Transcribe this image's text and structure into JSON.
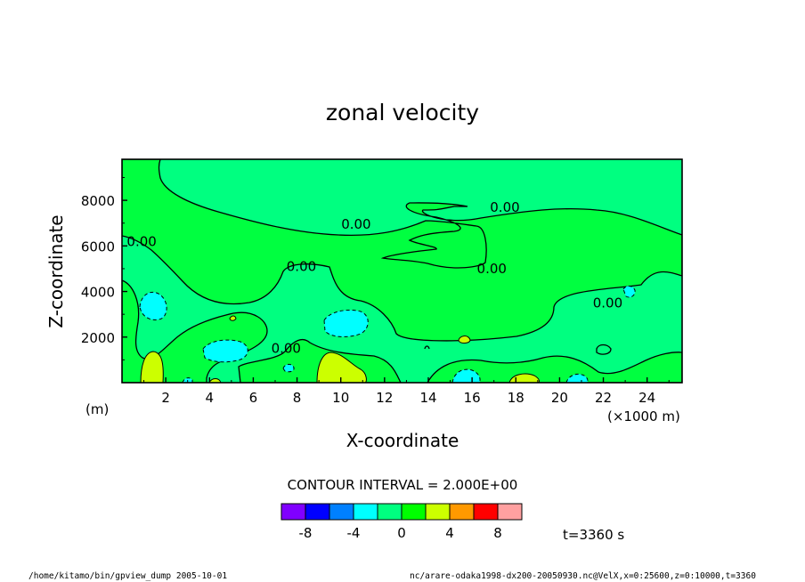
{
  "chart_data": {
    "type": "contour",
    "title": "zonal velocity",
    "xlabel": "X-coordinate",
    "ylabel": "Z-coordinate",
    "xunit": "(×1000 m)",
    "yunit": "(m)",
    "xlim": [
      0,
      25.6
    ],
    "ylim": [
      0,
      9800
    ],
    "xticks": [
      "2",
      "4",
      "6",
      "8",
      "10",
      "12",
      "14",
      "16",
      "18",
      "20",
      "22",
      "24"
    ],
    "yticks": [
      "2000",
      "4000",
      "6000",
      "8000"
    ],
    "contour_interval_text": "CONTOUR INTERVAL = 2.000E+00",
    "contour_labels": [
      {
        "text": "0.00",
        "x": 0.9,
        "y": 6000
      },
      {
        "text": "0.00",
        "x": 10.7,
        "y": 6750
      },
      {
        "text": "0.00",
        "x": 17.5,
        "y": 7500
      },
      {
        "text": "0.00",
        "x": 8.2,
        "y": 4900
      },
      {
        "text": "0.00",
        "x": 16.9,
        "y": 4800
      },
      {
        "text": "0.00",
        "x": 22.2,
        "y": 3300
      },
      {
        "text": "0.00",
        "x": 7.5,
        "y": 1300
      }
    ],
    "levels": [
      -10,
      -8,
      -6,
      -4,
      -2,
      0,
      2,
      4,
      6,
      8,
      10
    ],
    "colorbar_labels": [
      "-8",
      "-4",
      "0",
      "4",
      "8"
    ],
    "colors": [
      "#8000ff",
      "#0000ff",
      "#0080ff",
      "#00ffff",
      "#00ff80",
      "#00ff00",
      "#ccff00",
      "#ff9900",
      "#ff0000",
      "#ffa0a0"
    ],
    "field_colors": {
      "positive": "#00ff40",
      "near_zero": "#00ff80",
      "weak_negative": "#00ffff",
      "strong_positive": "#ccff00"
    },
    "time_label": "t=3360 s"
  },
  "footer": {
    "left": "/home/kitamo/bin/gpview_dump  2005-10-01",
    "right": "nc/arare-odaka1998-dx200-20050930.nc@VelX,x=0:25600,z=0:10000,t=3360"
  }
}
